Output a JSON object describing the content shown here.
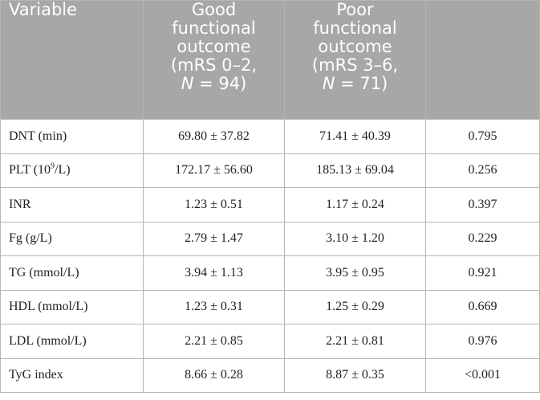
{
  "header": {
    "variable": "Variable",
    "good": {
      "line1": "Good",
      "line2": "functional",
      "line3": "outcome",
      "line4": "(mRS 0–2,",
      "n_symbol": "N",
      "n_value": " = 94)"
    },
    "poor": {
      "line1": "Poor",
      "line2": "functional",
      "line3": "outcome",
      "line4": "(mRS 3–6,",
      "n_symbol": "N",
      "n_value": " = 71)"
    },
    "p": ""
  },
  "plt_label": {
    "prefix": "PLT (10",
    "exponent": "9",
    "suffix": "/L)"
  },
  "rows": [
    {
      "variable": "DNT (min)",
      "good": "69.80 ± 37.82",
      "poor": "71.41 ± 40.39",
      "p": "0.795"
    },
    {
      "variable": "PLT (10⁹/L)",
      "good": "172.17 ± 56.60",
      "poor": "185.13 ± 69.04",
      "p": "0.256"
    },
    {
      "variable": "INR",
      "good": "1.23 ± 0.51",
      "poor": "1.17 ± 0.24",
      "p": "0.397"
    },
    {
      "variable": "Fg (g/L)",
      "good": "2.79 ± 1.47",
      "poor": "3.10 ± 1.20",
      "p": "0.229"
    },
    {
      "variable": "TG (mmol/L)",
      "good": "3.94 ± 1.13",
      "poor": "3.95 ± 0.95",
      "p": "0.921"
    },
    {
      "variable": "HDL (mmol/L)",
      "good": "1.23 ± 0.31",
      "poor": "1.25 ± 0.29",
      "p": "0.669"
    },
    {
      "variable": "LDL (mmol/L)",
      "good": "2.21 ± 0.85",
      "poor": "2.21 ± 0.81",
      "p": "0.976"
    },
    {
      "variable": "TyG index",
      "good": "8.66 ± 0.28",
      "poor": "8.87 ± 0.35",
      "p": "<0.001"
    }
  ],
  "colors": {
    "header_bg": "#a7a7a7",
    "header_text": "#ffffff",
    "grid": "#b5b5b5",
    "body_text": "#222222"
  }
}
